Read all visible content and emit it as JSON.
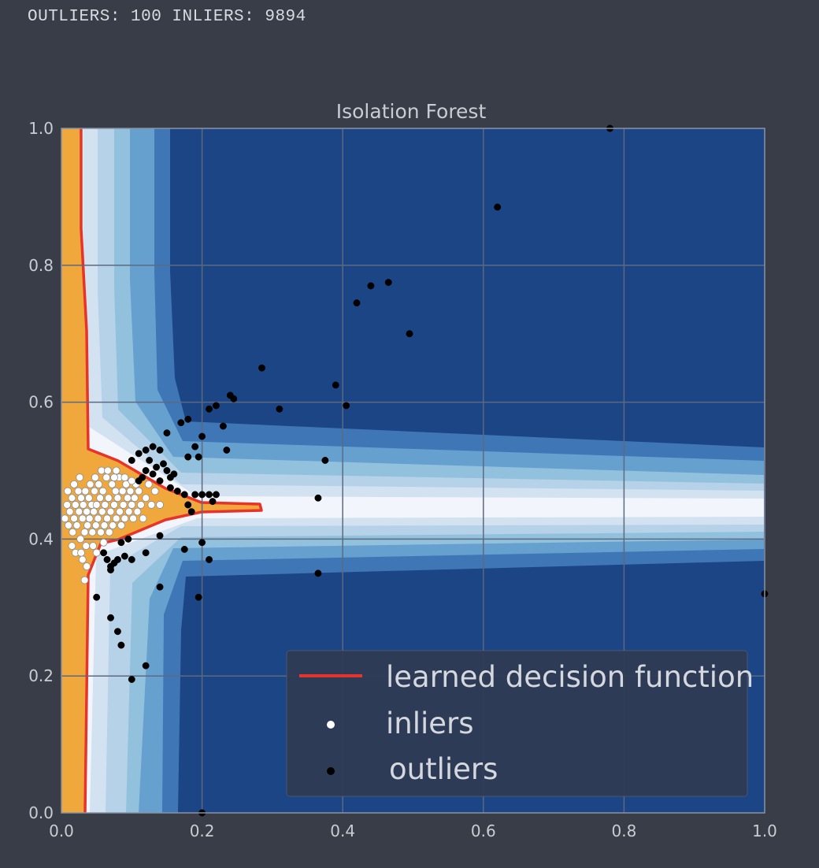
{
  "status": {
    "text": "OUTLIERS: 100 INLIERS: 9894"
  },
  "chart_data": {
    "type": "scatter",
    "title": "Isolation Forest",
    "xlabel": "",
    "ylabel": "",
    "xlim": [
      0,
      1
    ],
    "ylim": [
      0,
      1
    ],
    "xticks": [
      "0.0",
      "0.2",
      "0.4",
      "0.6",
      "0.8",
      "1.0"
    ],
    "yticks": [
      "0.0",
      "0.2",
      "0.4",
      "0.6",
      "0.8",
      "1.0"
    ],
    "grid": true,
    "background": "contour-filled decision function (Blues, dark = normal score far from data)",
    "legend": {
      "position": "lower-right",
      "entries": [
        {
          "label": "learned decision function",
          "marker": "line",
          "color": "#e8332a"
        },
        {
          "label": "inliers",
          "marker": "dot",
          "color": "#ffffff"
        },
        {
          "label": "outliers",
          "marker": "dot",
          "color": "#000000"
        }
      ]
    },
    "colors": {
      "frame": "#8a93a6",
      "grid": "#5d6980",
      "decision_line": "#e8332a",
      "inside_region": "#f0a73c",
      "contour_levels": [
        "#f2f6fc",
        "#d3e2f1",
        "#b6d2e8",
        "#92c1de",
        "#65a0cf",
        "#3f76b6",
        "#1b4584"
      ]
    },
    "series": [
      {
        "name": "inliers",
        "color": "#ffffff",
        "points": [
          [
            0.005,
            0.43
          ],
          [
            0.008,
            0.45
          ],
          [
            0.01,
            0.42
          ],
          [
            0.012,
            0.44
          ],
          [
            0.015,
            0.46
          ],
          [
            0.016,
            0.41
          ],
          [
            0.018,
            0.43
          ],
          [
            0.02,
            0.45
          ],
          [
            0.022,
            0.42
          ],
          [
            0.024,
            0.47
          ],
          [
            0.025,
            0.44
          ],
          [
            0.027,
            0.4
          ],
          [
            0.028,
            0.46
          ],
          [
            0.03,
            0.43
          ],
          [
            0.031,
            0.45
          ],
          [
            0.033,
            0.41
          ],
          [
            0.034,
            0.47
          ],
          [
            0.036,
            0.44
          ],
          [
            0.037,
            0.42
          ],
          [
            0.039,
            0.46
          ],
          [
            0.04,
            0.43
          ],
          [
            0.041,
            0.48
          ],
          [
            0.043,
            0.45
          ],
          [
            0.044,
            0.41
          ],
          [
            0.046,
            0.44
          ],
          [
            0.047,
            0.47
          ],
          [
            0.049,
            0.42
          ],
          [
            0.05,
            0.45
          ],
          [
            0.052,
            0.43
          ],
          [
            0.053,
            0.48
          ],
          [
            0.055,
            0.46
          ],
          [
            0.056,
            0.41
          ],
          [
            0.058,
            0.44
          ],
          [
            0.059,
            0.47
          ],
          [
            0.061,
            0.42
          ],
          [
            0.062,
            0.45
          ],
          [
            0.064,
            0.49
          ],
          [
            0.065,
            0.43
          ],
          [
            0.067,
            0.46
          ],
          [
            0.068,
            0.41
          ],
          [
            0.07,
            0.44
          ],
          [
            0.072,
            0.48
          ],
          [
            0.073,
            0.42
          ],
          [
            0.075,
            0.45
          ],
          [
            0.077,
            0.47
          ],
          [
            0.078,
            0.43
          ],
          [
            0.08,
            0.46
          ],
          [
            0.082,
            0.49
          ],
          [
            0.083,
            0.44
          ],
          [
            0.085,
            0.42
          ],
          [
            0.087,
            0.47
          ],
          [
            0.088,
            0.45
          ],
          [
            0.09,
            0.43
          ],
          [
            0.092,
            0.48
          ],
          [
            0.094,
            0.46
          ],
          [
            0.096,
            0.44
          ],
          [
            0.098,
            0.47
          ],
          [
            0.1,
            0.45
          ],
          [
            0.102,
            0.43
          ],
          [
            0.104,
            0.46
          ],
          [
            0.106,
            0.48
          ],
          [
            0.108,
            0.44
          ],
          [
            0.11,
            0.47
          ],
          [
            0.113,
            0.45
          ],
          [
            0.116,
            0.43
          ],
          [
            0.12,
            0.46
          ],
          [
            0.124,
            0.48
          ],
          [
            0.128,
            0.45
          ],
          [
            0.133,
            0.47
          ],
          [
            0.14,
            0.45
          ],
          [
            0.015,
            0.39
          ],
          [
            0.02,
            0.38
          ],
          [
            0.028,
            0.38
          ],
          [
            0.035,
            0.39
          ],
          [
            0.045,
            0.39
          ],
          [
            0.03,
            0.37
          ],
          [
            0.036,
            0.36
          ],
          [
            0.033,
            0.34
          ],
          [
            0.05,
            0.38
          ],
          [
            0.06,
            0.395
          ],
          [
            0.009,
            0.47
          ],
          [
            0.018,
            0.48
          ],
          [
            0.026,
            0.49
          ],
          [
            0.048,
            0.49
          ],
          [
            0.057,
            0.5
          ],
          [
            0.066,
            0.5
          ],
          [
            0.078,
            0.5
          ],
          [
            0.09,
            0.49
          ],
          [
            0.1,
            0.485
          ],
          [
            0.075,
            0.49
          ]
        ]
      },
      {
        "name": "outliers",
        "color": "#000000",
        "points": [
          [
            0.78,
            1.0
          ],
          [
            0.62,
            0.885
          ],
          [
            0.465,
            0.775
          ],
          [
            0.44,
            0.77
          ],
          [
            0.42,
            0.745
          ],
          [
            0.495,
            0.7
          ],
          [
            0.285,
            0.65
          ],
          [
            0.39,
            0.625
          ],
          [
            0.405,
            0.595
          ],
          [
            0.31,
            0.59
          ],
          [
            0.24,
            0.61
          ],
          [
            0.245,
            0.605
          ],
          [
            0.22,
            0.595
          ],
          [
            0.21,
            0.59
          ],
          [
            0.17,
            0.57
          ],
          [
            0.18,
            0.575
          ],
          [
            0.23,
            0.565
          ],
          [
            0.2,
            0.55
          ],
          [
            0.15,
            0.555
          ],
          [
            0.19,
            0.535
          ],
          [
            0.195,
            0.52
          ],
          [
            0.235,
            0.53
          ],
          [
            0.18,
            0.52
          ],
          [
            0.375,
            0.515
          ],
          [
            0.12,
            0.53
          ],
          [
            0.13,
            0.535
          ],
          [
            0.14,
            0.53
          ],
          [
            0.11,
            0.525
          ],
          [
            0.1,
            0.515
          ],
          [
            0.125,
            0.515
          ],
          [
            0.135,
            0.505
          ],
          [
            0.145,
            0.51
          ],
          [
            0.15,
            0.5
          ],
          [
            0.155,
            0.49
          ],
          [
            0.16,
            0.495
          ],
          [
            0.12,
            0.5
          ],
          [
            0.13,
            0.495
          ],
          [
            0.115,
            0.49
          ],
          [
            0.11,
            0.485
          ],
          [
            0.14,
            0.485
          ],
          [
            0.155,
            0.475
          ],
          [
            0.165,
            0.47
          ],
          [
            0.175,
            0.465
          ],
          [
            0.19,
            0.465
          ],
          [
            0.2,
            0.465
          ],
          [
            0.21,
            0.465
          ],
          [
            0.215,
            0.455
          ],
          [
            0.22,
            0.465
          ],
          [
            0.18,
            0.45
          ],
          [
            0.185,
            0.44
          ],
          [
            0.365,
            0.46
          ],
          [
            0.175,
            0.385
          ],
          [
            0.2,
            0.395
          ],
          [
            0.21,
            0.37
          ],
          [
            0.14,
            0.405
          ],
          [
            0.12,
            0.38
          ],
          [
            0.1,
            0.37
          ],
          [
            0.09,
            0.375
          ],
          [
            0.08,
            0.37
          ],
          [
            0.075,
            0.365
          ],
          [
            0.06,
            0.38
          ],
          [
            0.065,
            0.37
          ],
          [
            0.07,
            0.36
          ],
          [
            0.07,
            0.355
          ],
          [
            0.095,
            0.4
          ],
          [
            0.085,
            0.395
          ],
          [
            0.365,
            0.35
          ],
          [
            0.14,
            0.33
          ],
          [
            0.195,
            0.315
          ],
          [
            0.05,
            0.315
          ],
          [
            0.07,
            0.285
          ],
          [
            0.08,
            0.265
          ],
          [
            0.085,
            0.245
          ],
          [
            0.12,
            0.215
          ],
          [
            0.1,
            0.195
          ],
          [
            1.0,
            0.32
          ],
          [
            0.2,
            0.0
          ]
        ]
      }
    ]
  }
}
